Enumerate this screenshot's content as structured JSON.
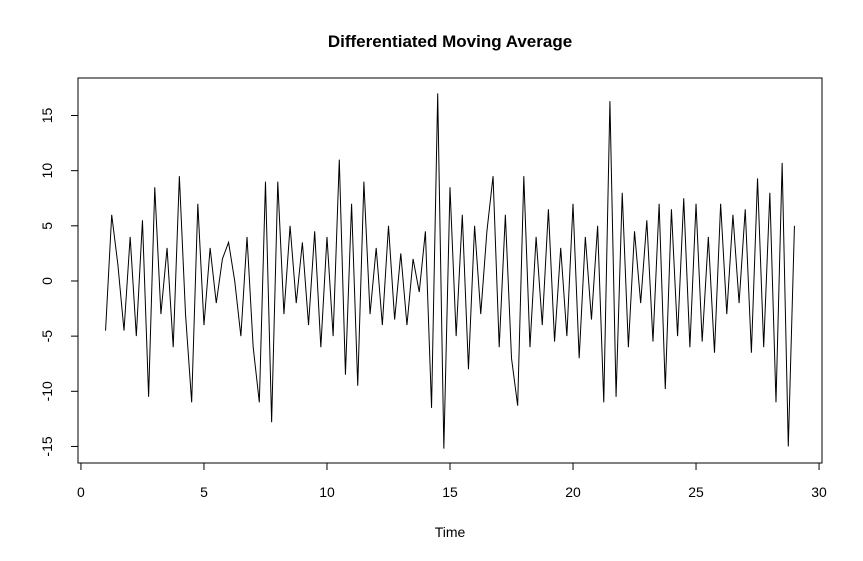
{
  "chart_data": {
    "type": "line",
    "title": "Differentiated Moving Average",
    "x_label": "Time",
    "x": [
      1,
      1.25,
      1.5,
      1.75,
      2,
      2.25,
      2.5,
      2.75,
      3,
      3.25,
      3.5,
      3.75,
      4,
      4.25,
      4.5,
      4.75,
      5,
      5.25,
      5.5,
      5.75,
      6,
      6.25,
      6.5,
      6.75,
      7,
      7.25,
      7.5,
      7.75,
      8,
      8.25,
      8.5,
      8.75,
      9,
      9.25,
      9.5,
      9.75,
      10,
      10.25,
      10.5,
      10.75,
      11,
      11.25,
      11.5,
      11.75,
      12,
      12.25,
      12.5,
      12.75,
      13,
      13.25,
      13.5,
      13.75,
      14,
      14.25,
      14.5,
      14.75,
      15,
      15.25,
      15.5,
      15.75,
      16,
      16.25,
      16.5,
      16.75,
      17,
      17.25,
      17.5,
      17.75,
      18,
      18.25,
      18.5,
      18.75,
      19,
      19.25,
      19.5,
      19.75,
      20,
      20.25,
      20.5,
      20.75,
      21,
      21.25,
      21.5,
      21.75,
      22,
      22.25,
      22.5,
      22.75,
      23,
      23.25,
      23.5,
      23.75,
      24,
      24.25,
      24.5,
      24.75,
      25,
      25.25,
      25.5,
      25.75,
      26,
      26.25,
      26.5,
      26.75,
      27,
      27.25,
      27.5,
      27.75,
      28,
      28.25,
      28.5,
      28.75,
      29
    ],
    "series": [
      {
        "color": "#000000",
        "values": [
          -4.5,
          6,
          1.5,
          -4.5,
          4,
          -5,
          5.5,
          -10.5,
          8.5,
          -3,
          3,
          -6,
          9.5,
          -3,
          -11,
          7,
          -4,
          3,
          -2,
          2,
          3.5,
          0,
          -5,
          4,
          -6,
          -11,
          9,
          -12.8,
          9,
          -3,
          5,
          -2,
          3.5,
          -4,
          4.5,
          -6,
          4,
          -5,
          11,
          -8.5,
          7,
          -9.5,
          9,
          -3,
          3,
          -4,
          5,
          -3.5,
          2.5,
          -4,
          2,
          -1,
          4.5,
          -11.5,
          17,
          -15.2,
          8.5,
          -5,
          6,
          -8,
          5,
          -3,
          4.5,
          9.5,
          -6,
          6,
          -7,
          -11.3,
          9.5,
          -6,
          4,
          -4,
          6.5,
          -5.5,
          3,
          -5,
          7,
          -7,
          4,
          -3.5,
          5,
          -11,
          16.3,
          -10.5,
          8,
          -6,
          4.5,
          -2,
          5.5,
          -5.5,
          7,
          -9.8,
          6.5,
          -5,
          7.5,
          -6,
          7,
          -5.5,
          4,
          -6.5,
          7,
          -3,
          6,
          -2,
          6.5,
          -6.5,
          9.3,
          -6,
          8,
          -11,
          10.7,
          -15,
          5
        ]
      }
    ],
    "xlim": [
      -0.12,
      30.12
    ],
    "ylim": [
      -16.5,
      18.4
    ],
    "xticks": [
      0,
      5,
      10,
      15,
      20,
      25,
      30
    ],
    "yticks": [
      -15,
      -10,
      -5,
      0,
      5,
      10,
      15
    ]
  }
}
